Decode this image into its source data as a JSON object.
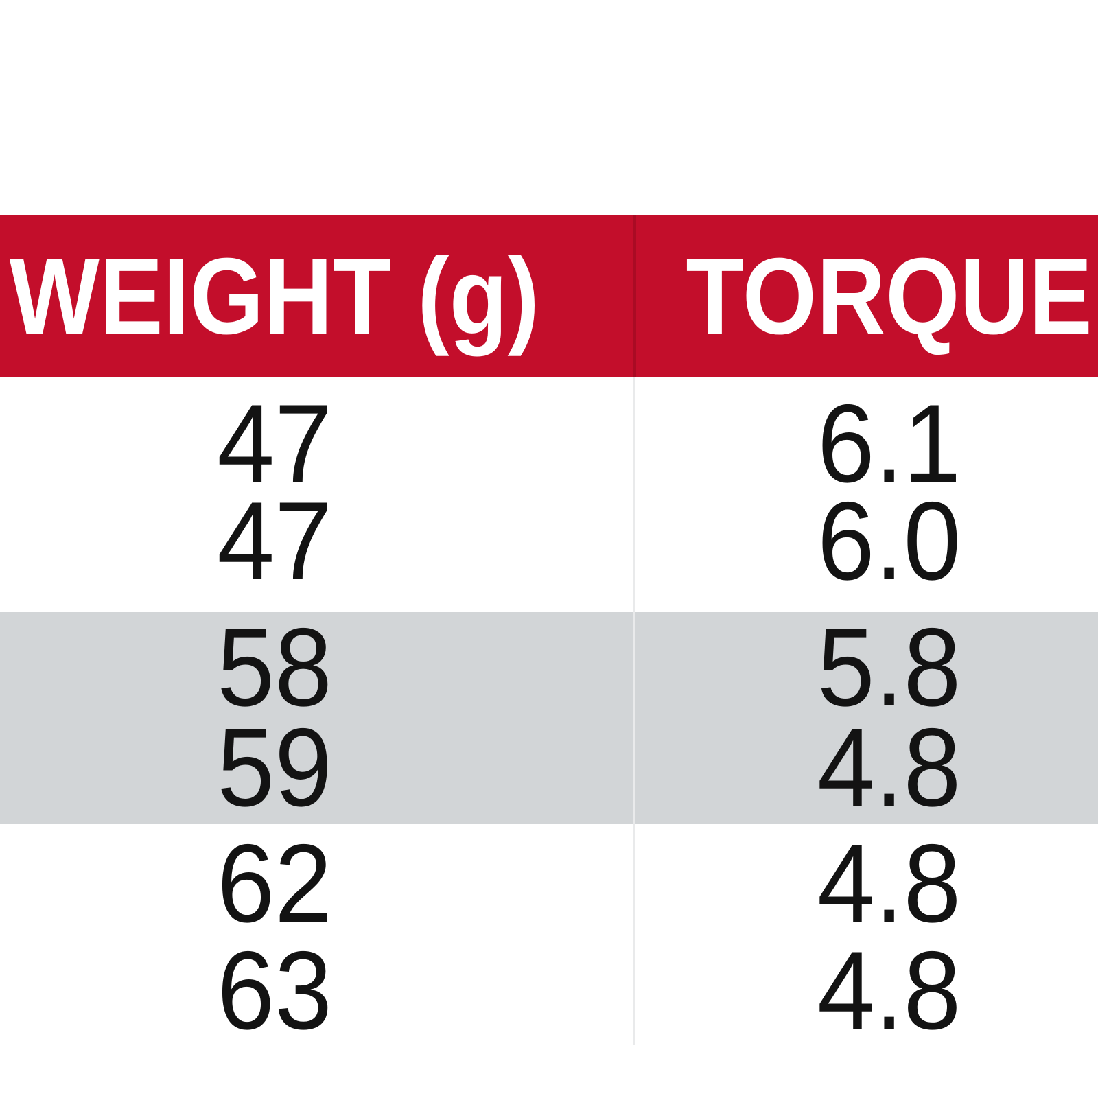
{
  "table": {
    "columns": [
      {
        "label": "WEIGHT (g)"
      },
      {
        "label": "TORQUE"
      }
    ],
    "bands": [
      {
        "style": "white",
        "rows": [
          {
            "weight": "47",
            "torque": "6.1"
          },
          {
            "weight": "47",
            "torque": "6.0"
          }
        ]
      },
      {
        "style": "gray",
        "rows": [
          {
            "weight": "58",
            "torque": "5.8"
          },
          {
            "weight": "59",
            "torque": "4.8"
          }
        ]
      },
      {
        "style": "white",
        "rows": [
          {
            "weight": "62",
            "torque": "4.8"
          },
          {
            "weight": "63",
            "torque": "4.8"
          }
        ]
      }
    ]
  },
  "colors": {
    "header_red": "#C30E2B",
    "header_divider_red": "#AA0B24",
    "band_gray": "#D2D5D7",
    "body_divider_gray": "#E9EAEB",
    "header_text": "#FFFFFF",
    "number_text": "#131313",
    "background": "#FFFFFF"
  },
  "chart_data": {
    "type": "table",
    "columns": [
      "WEIGHT (g)",
      "TORQUE"
    ],
    "rows": [
      [
        47,
        6.1
      ],
      [
        47,
        6.0
      ],
      [
        58,
        5.8
      ],
      [
        59,
        4.8
      ],
      [
        62,
        4.8
      ],
      [
        63,
        4.8
      ]
    ]
  }
}
